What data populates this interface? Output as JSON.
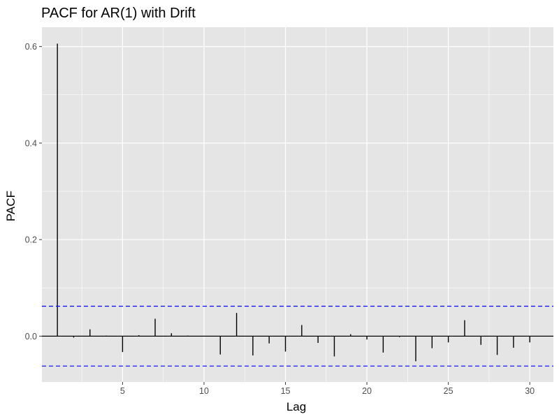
{
  "chart_data": {
    "type": "bar",
    "title": "PACF for AR(1) with Drift",
    "xlabel": "Lag",
    "ylabel": "PACF",
    "xlim": [
      0.05,
      31.45
    ],
    "ylim": [
      -0.095,
      0.64
    ],
    "x_ticks": [
      5,
      10,
      15,
      20,
      25,
      30
    ],
    "y_ticks": [
      0.0,
      0.2,
      0.4,
      0.6
    ],
    "y_tick_labels": [
      "0.0",
      "0.2",
      "0.4",
      "0.6"
    ],
    "grid": true,
    "confidence_bound": 0.062,
    "colors": {
      "panel_background": "#e5e5e5",
      "grid": "#ffffff",
      "bar": "#000000",
      "confidence_line": "#0000ff"
    },
    "lags": [
      1,
      2,
      3,
      4,
      5,
      6,
      7,
      8,
      9,
      10,
      11,
      12,
      13,
      14,
      15,
      16,
      17,
      18,
      19,
      20,
      21,
      22,
      23,
      24,
      25,
      26,
      27,
      28,
      29,
      30
    ],
    "values": [
      0.606,
      -0.003,
      0.014,
      0.001,
      -0.033,
      0.002,
      0.036,
      0.006,
      0.001,
      0.0,
      -0.038,
      0.048,
      -0.04,
      -0.015,
      -0.032,
      0.023,
      -0.014,
      -0.042,
      0.004,
      -0.007,
      -0.034,
      -0.002,
      -0.052,
      -0.025,
      -0.013,
      0.033,
      -0.018,
      -0.039,
      -0.024,
      -0.013
    ]
  }
}
